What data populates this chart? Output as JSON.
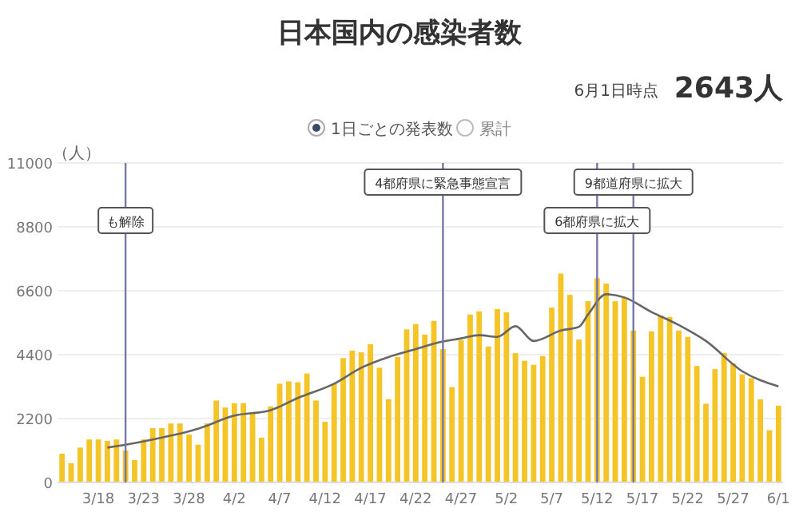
{
  "chart_data": {
    "type": "bar",
    "title": "日本国内の感染者数",
    "ylabel": "（人）",
    "annotations": [
      "6月1日時点",
      "2643人",
      "1日ごとの発表数",
      "累計"
    ],
    "x": [
      "--03-14",
      "--03-15",
      "--03-16",
      "--03-17",
      "--03-18",
      "--03-19",
      "--03-20",
      "--03-21",
      "--03-22",
      "--03-23",
      "--03-24",
      "--03-25",
      "--03-26",
      "--03-27",
      "--03-28",
      "--03-29",
      "--03-30",
      "--03-31",
      "--04-01",
      "--04-02",
      "--04-03",
      "--04-04",
      "--04-05",
      "--04-06",
      "--04-07",
      "--04-08",
      "--04-09",
      "--04-10",
      "--04-11",
      "--04-12",
      "--04-13",
      "--04-14",
      "--04-15",
      "--04-16",
      "--04-17",
      "--04-18",
      "--04-19",
      "--04-20",
      "--04-21",
      "--04-22",
      "--04-23",
      "--04-24",
      "--04-25",
      "--04-26",
      "--04-27",
      "--04-28",
      "--04-29",
      "--04-30",
      "--05-01",
      "--05-02",
      "--05-03",
      "--05-04",
      "--05-05",
      "--05-06",
      "--05-07",
      "--05-08",
      "--05-09",
      "--05-10",
      "--05-11",
      "--05-12",
      "--05-13",
      "--05-14",
      "--05-15",
      "--05-16",
      "--05-17",
      "--05-18",
      "--05-19",
      "--05-20",
      "--05-21",
      "--05-22",
      "--05-23",
      "--05-24",
      "--05-25",
      "--05-26",
      "--05-27",
      "--05-28",
      "--05-29",
      "--05-30",
      "--05-31",
      "--06-01"
    ],
    "series": [
      {
        "color": "#f5c426",
        "values": [
          990,
          660,
          1200,
          1480,
          1480,
          1430,
          1480,
          1100,
          770,
          1480,
          1870,
          1870,
          2030,
          2030,
          1650,
          1300,
          2030,
          2820,
          2580,
          2730,
          2730,
          2420,
          1540,
          2620,
          3400,
          3480,
          3450,
          3750,
          2820,
          2090,
          3400,
          4280,
          4540,
          4480,
          4760,
          3950,
          2870,
          4320,
          5270,
          5450,
          5090,
          5560,
          4590,
          3280,
          4900,
          5780,
          5890,
          4680,
          5970,
          5860,
          4450,
          4190,
          4050,
          4350,
          6020,
          7190,
          6460,
          4920,
          6240,
          7030,
          6850,
          6240,
          6370,
          5230,
          3640,
          5200,
          5750,
          5700,
          5230,
          5010,
          4010,
          2710,
          3900,
          4460,
          4100,
          3720,
          3590,
          2860,
          1800,
          2643
        ]
      },
      {
        "type": "line",
        "color": "#666666",
        "x": [
          "--03-19",
          "--03-21",
          "--03-24",
          "--03-29",
          "--04-02",
          "--04-06",
          "--04-09",
          "--04-13",
          "--04-16",
          "--04-19",
          "--04-22",
          "--04-24",
          "--04-27",
          "--04-29",
          "--05-01",
          "--05-03",
          "--05-05",
          "--05-08",
          "--05-10",
          "--05-11",
          "--05-13",
          "--05-15",
          "--05-18",
          "--05-21",
          "--05-24",
          "--05-28",
          "--06-01"
        ],
        "values": [
          1200,
          1300,
          1480,
          1850,
          2300,
          2490,
          2910,
          3400,
          3950,
          4320,
          4590,
          4780,
          4960,
          5070,
          5010,
          5380,
          4870,
          5230,
          5360,
          5780,
          6480,
          6370,
          5870,
          5420,
          4870,
          3830,
          3310
        ]
      }
    ],
    "xlim": [
      "--03-13T12:00",
      "--06-01T12:00"
    ],
    "ylim": [
      0,
      11000
    ],
    "yticks": [
      0,
      2200,
      4400,
      6600,
      8800,
      11000
    ],
    "xticks": [
      {
        "value": "--03-18",
        "label": "3/18"
      },
      {
        "value": "--03-23",
        "label": "3/23"
      },
      {
        "value": "--03-28",
        "label": "3/28"
      },
      {
        "value": "--04-02",
        "label": "4/2"
      },
      {
        "value": "--04-07",
        "label": "4/7"
      },
      {
        "value": "--04-12",
        "label": "4/12"
      },
      {
        "value": "--04-17",
        "label": "4/17"
      },
      {
        "value": "--04-22",
        "label": "4/22"
      },
      {
        "value": "--04-27",
        "label": "4/27"
      },
      {
        "value": "--05-02",
        "label": "5/2"
      },
      {
        "value": "--05-07",
        "label": "5/7"
      },
      {
        "value": "--05-12",
        "label": "5/12"
      },
      {
        "value": "--05-17",
        "label": "5/17"
      },
      {
        "value": "--05-22",
        "label": "5/22"
      },
      {
        "value": "--05-27",
        "label": "5/27"
      },
      {
        "value": "--06-01",
        "label": "6/1"
      }
    ],
    "ref_lines": [
      {
        "axis": "x",
        "value": "--03-21",
        "label": "も解除",
        "color": "#7777aa"
      },
      {
        "axis": "x",
        "value": "--04-25",
        "label": "4都府県に緊急事態宣言",
        "color": "#7777aa"
      },
      {
        "axis": "x",
        "value": "--05-12",
        "label": "6都府県に拡大",
        "color": "#7777aa"
      },
      {
        "axis": "x",
        "value": "--05-16",
        "label": "9都道府県に拡大",
        "color": "#7777aa"
      }
    ],
    "grid": "y"
  }
}
